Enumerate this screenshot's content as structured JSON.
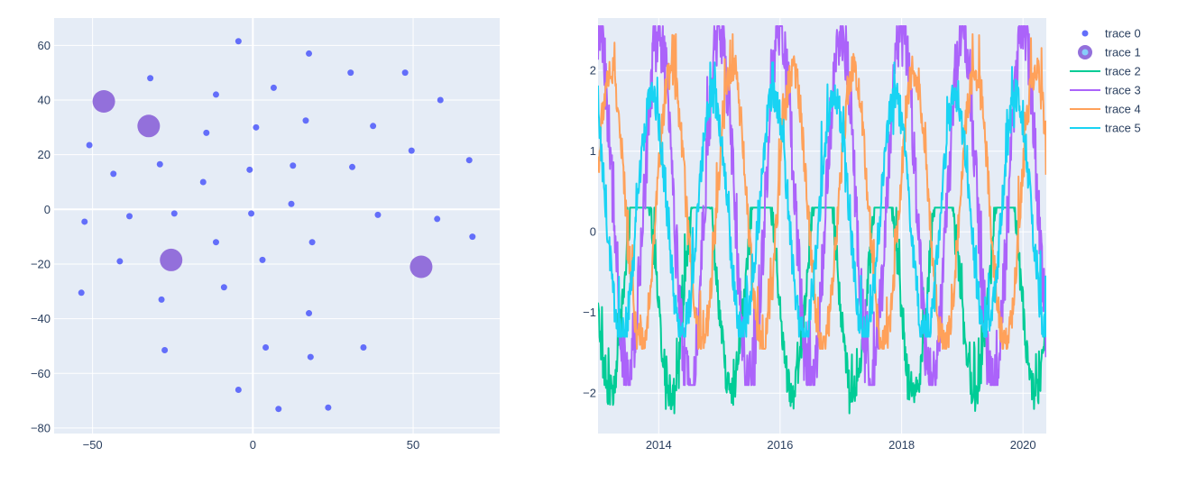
{
  "colors": {
    "plot_bg": "#e5ecf6",
    "grid": "#ffffff",
    "text": "#2a3f5f",
    "trace0": "#636efa",
    "trace1": "#9370db",
    "trace1_inner": "#87cefa",
    "trace2": "#00cc96",
    "trace3": "#ab63fa",
    "trace4": "#ffa15a",
    "trace5": "#19d3f3"
  },
  "legend": {
    "position": "right",
    "items": [
      {
        "label": "trace 0",
        "kind": "marker"
      },
      {
        "label": "trace 1",
        "kind": "bigmarker"
      },
      {
        "label": "trace 2",
        "kind": "line"
      },
      {
        "label": "trace 3",
        "kind": "line"
      },
      {
        "label": "trace 4",
        "kind": "line"
      },
      {
        "label": "trace 5",
        "kind": "line"
      }
    ]
  },
  "chart_data": [
    {
      "type": "scatter",
      "xlim": [
        -62,
        77
      ],
      "ylim": [
        -82,
        70
      ],
      "xticks": [
        -50,
        0,
        50
      ],
      "xtick_labels": [
        "−50",
        "0",
        "50"
      ],
      "yticks": [
        60,
        40,
        20,
        0,
        -20,
        -40,
        -60,
        -80
      ],
      "ytick_labels": [
        "60",
        "40",
        "20",
        "0",
        "−20",
        "−40",
        "−60",
        "−80"
      ],
      "grid": true,
      "series": [
        {
          "name": "trace 0",
          "points": [
            [
              -4.5,
              61.5
            ],
            [
              17.5,
              57
            ],
            [
              -32,
              48
            ],
            [
              30.5,
              50
            ],
            [
              47.5,
              50
            ],
            [
              6.5,
              44.5
            ],
            [
              -11.5,
              42
            ],
            [
              58.5,
              40
            ],
            [
              16.5,
              32.5
            ],
            [
              37.5,
              30.5
            ],
            [
              1,
              30
            ],
            [
              -14.5,
              28
            ],
            [
              -51,
              23.5
            ],
            [
              49.5,
              21.5
            ],
            [
              67.5,
              18
            ],
            [
              -29,
              16.5
            ],
            [
              12.5,
              16
            ],
            [
              31,
              15.5
            ],
            [
              -1,
              14.5
            ],
            [
              -43.5,
              13
            ],
            [
              -15.5,
              10
            ],
            [
              12,
              2
            ],
            [
              -24.5,
              -1.5
            ],
            [
              -0.5,
              -1.5
            ],
            [
              39,
              -2
            ],
            [
              -38.5,
              -2.5
            ],
            [
              57.5,
              -3.5
            ],
            [
              -52.5,
              -4.5
            ],
            [
              68.5,
              -10
            ],
            [
              -11.5,
              -12
            ],
            [
              18.5,
              -12
            ],
            [
              -41.5,
              -19
            ],
            [
              3,
              -18.5
            ],
            [
              -9,
              -28.5
            ],
            [
              -53.5,
              -30.5
            ],
            [
              -28.5,
              -33
            ],
            [
              17.5,
              -38
            ],
            [
              4,
              -50.5
            ],
            [
              34.5,
              -50.5
            ],
            [
              -27.5,
              -51.5
            ],
            [
              18,
              -54
            ],
            [
              -4.5,
              -66
            ],
            [
              8,
              -73
            ],
            [
              23.5,
              -72.5
            ]
          ]
        },
        {
          "name": "trace 1",
          "points": [
            [
              -46.5,
              39.5
            ],
            [
              -32.5,
              30.5
            ],
            [
              -25.5,
              -18.5
            ],
            [
              52.5,
              -21
            ]
          ]
        }
      ]
    },
    {
      "type": "line",
      "xlim": [
        "2013-01-01",
        "2020-05-20"
      ],
      "ylim": [
        -2.5,
        2.65
      ],
      "xticks": [
        "2014-01-01",
        "2016-01-01",
        "2018-01-01",
        "2020-01-01"
      ],
      "xtick_labels": [
        "2014",
        "2016",
        "2018",
        "2020"
      ],
      "yticks": [
        2,
        1,
        0,
        -1,
        -2
      ],
      "ytick_labels": [
        "2",
        "1",
        "0",
        "−1",
        "−2"
      ],
      "grid": true,
      "series": [
        {
          "name": "trace 2",
          "amplitude": 1.5,
          "peak": 0.3,
          "trough": -2.25,
          "mean": -0.5,
          "phase_offset_days": 110
        },
        {
          "name": "trace 3",
          "amplitude": 2.2,
          "peak": 2.55,
          "trough": -1.9,
          "mean": 0.3,
          "phase_offset_days": 0
        },
        {
          "name": "trace 4",
          "amplitude": 1.7,
          "peak": 2.45,
          "trough": -1.45,
          "mean": 0.3,
          "phase_offset_days": 290
        },
        {
          "name": "trace 5",
          "amplitude": 1.5,
          "peak": 2.1,
          "trough": -1.3,
          "mean": 0.2,
          "phase_offset_days": 40
        }
      ]
    }
  ]
}
